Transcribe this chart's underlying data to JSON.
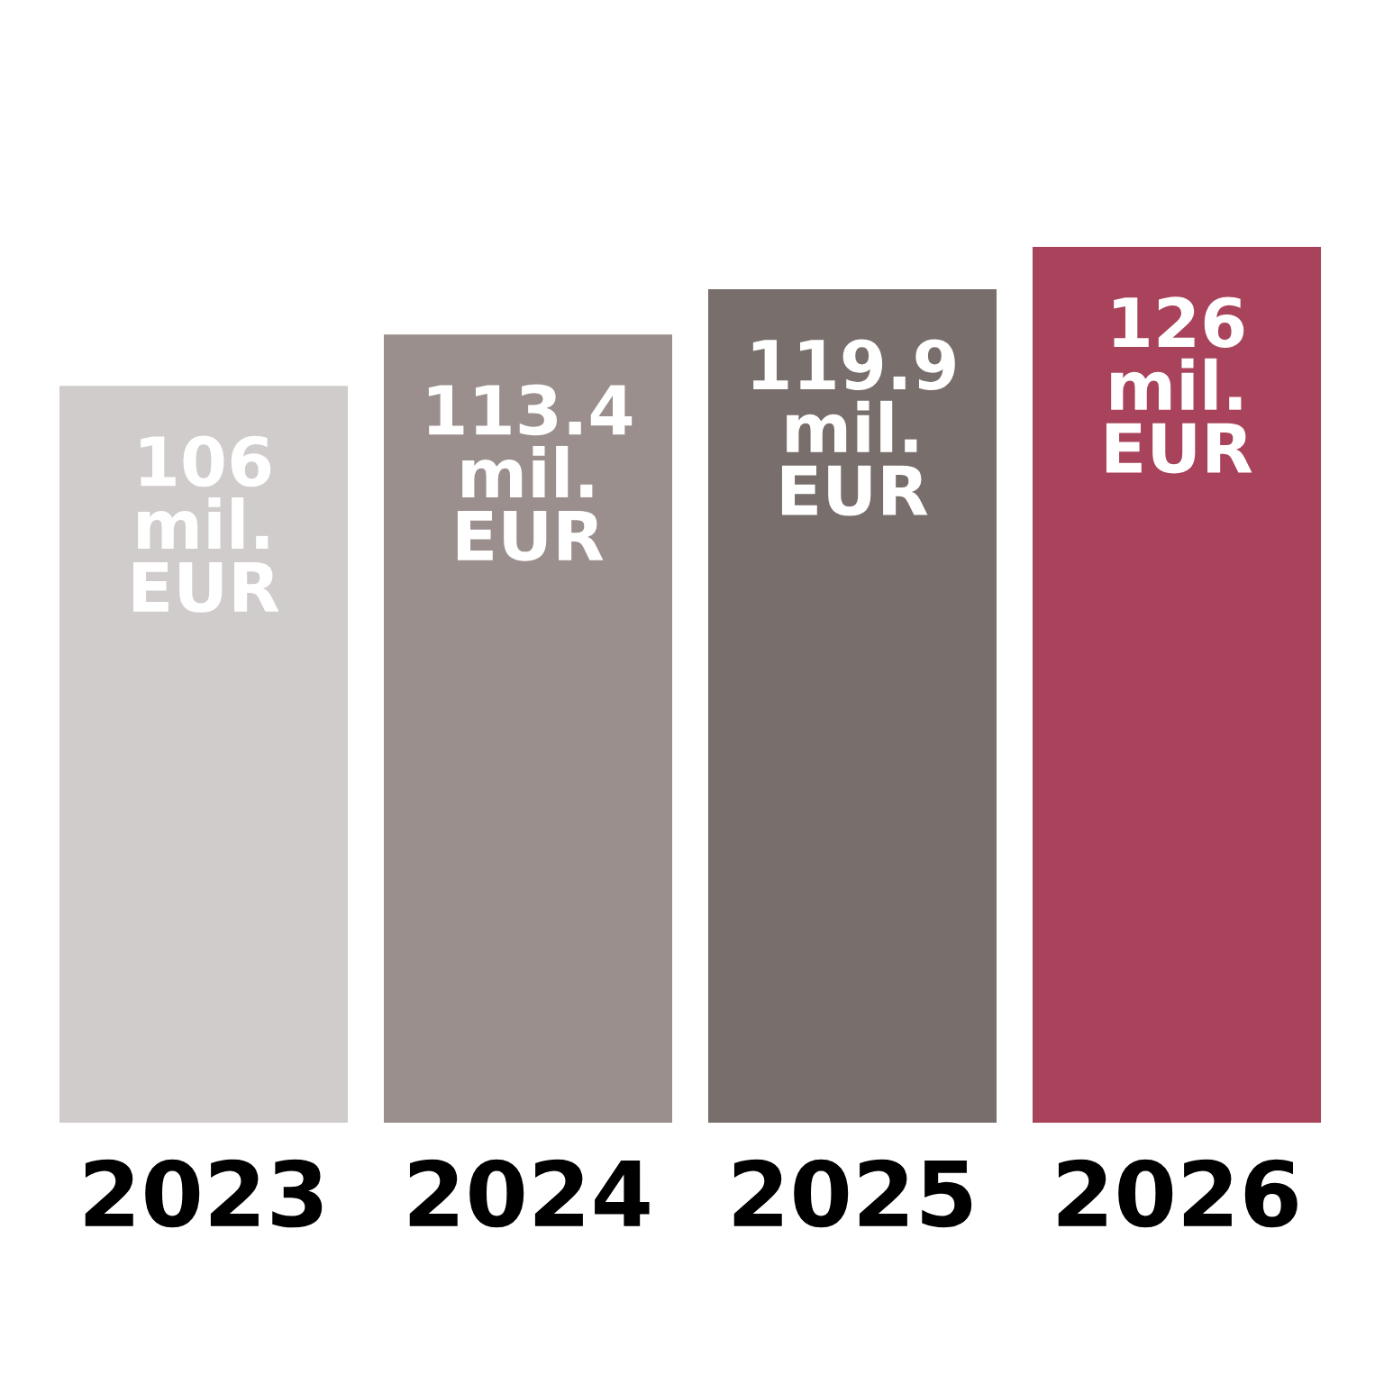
{
  "chart_data": {
    "type": "bar",
    "categories": [
      "2023",
      "2024",
      "2025",
      "2026"
    ],
    "values": [
      106,
      113.4,
      119.9,
      126
    ],
    "colors": [
      "#d0cccb",
      "#9a8f8d",
      "#786e6c",
      "#a8435b"
    ],
    "value_labels": [
      "106\nmil.\nEUR",
      "113.4\nmil.\nEUR",
      "119.9\nmil.\nEUR",
      "126\nmil.\nEUR"
    ],
    "tick_labels": "x",
    "grid": false,
    "legend": false
  }
}
